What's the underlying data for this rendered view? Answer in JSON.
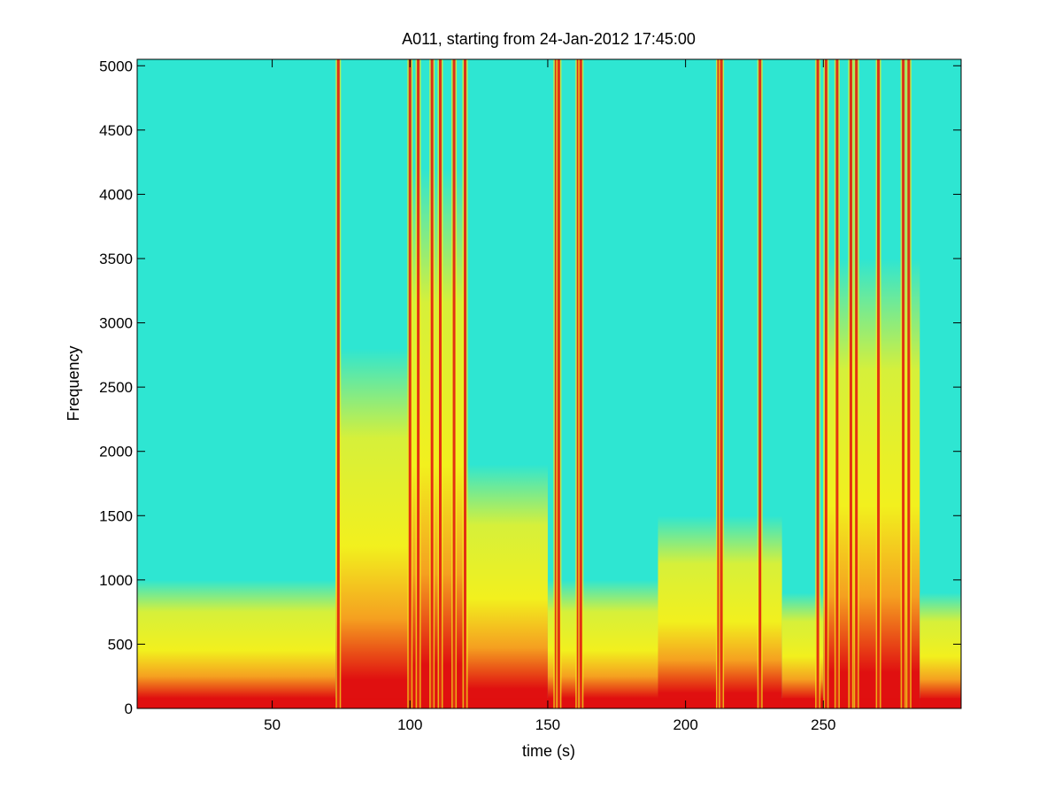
{
  "chart_data": {
    "type": "heatmap",
    "title": "A011, starting from 24-Jan-2012 17:45:00",
    "xlabel": "time (s)",
    "ylabel": "Frequency",
    "xlim": [
      1,
      300
    ],
    "ylim": [
      0,
      5050
    ],
    "xticks": [
      50,
      100,
      150,
      200,
      250
    ],
    "yticks": [
      0,
      500,
      1000,
      1500,
      2000,
      2500,
      3000,
      3500,
      4000,
      4500,
      5000
    ],
    "grid": false,
    "legend": "none",
    "colormap": "jet",
    "colors": {
      "low": "#2ee6d2",
      "mid": "#f2f01e",
      "high": "#e01010",
      "axes": "#000000",
      "background": "#ffffff"
    },
    "segments": [
      {
        "t0": 1,
        "t1": 73,
        "top_frequency": 1000
      },
      {
        "t0": 73,
        "t1": 100,
        "top_frequency": 2800
      },
      {
        "t0": 100,
        "t1": 120,
        "top_frequency": 4200
      },
      {
        "t0": 120,
        "t1": 150,
        "top_frequency": 1900
      },
      {
        "t0": 150,
        "t1": 190,
        "top_frequency": 1000
      },
      {
        "t0": 190,
        "t1": 235,
        "top_frequency": 1500
      },
      {
        "t0": 235,
        "t1": 250,
        "top_frequency": 900
      },
      {
        "t0": 250,
        "t1": 285,
        "top_frequency": 3500
      },
      {
        "t0": 285,
        "t1": 300,
        "top_frequency": 900
      }
    ],
    "broadband_bursts": [
      74,
      100,
      103,
      108,
      111,
      116,
      120,
      153,
      154,
      161,
      162,
      212,
      213,
      227,
      248,
      251,
      255,
      260,
      262,
      270,
      279,
      281
    ]
  }
}
